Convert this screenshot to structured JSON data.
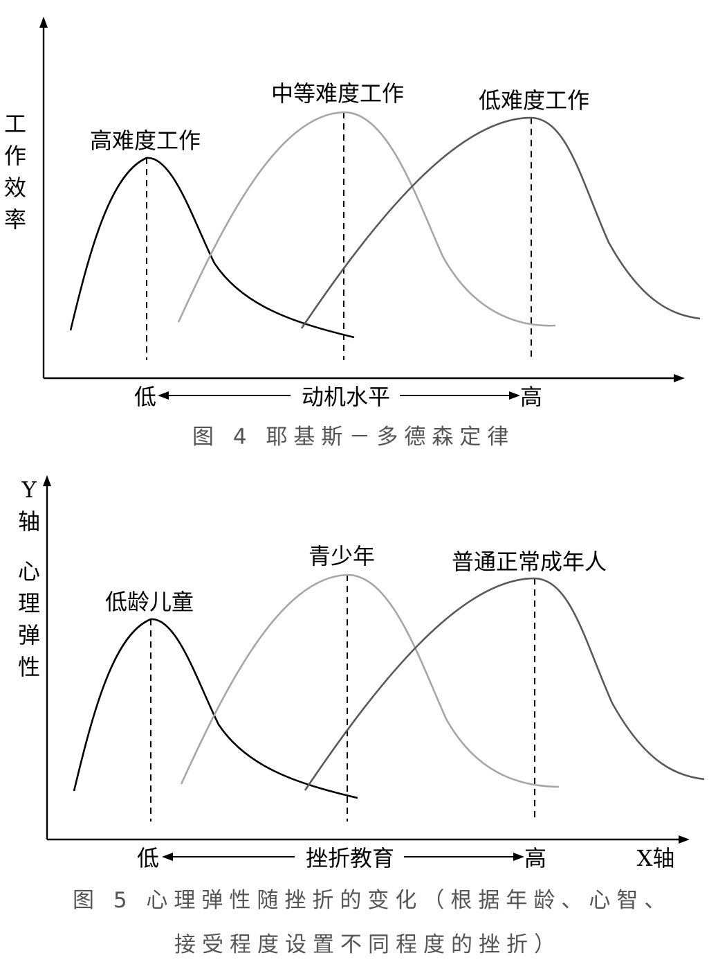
{
  "chart_data": [
    {
      "type": "line",
      "title": "",
      "caption": "图 4  耶基斯－多德森定律",
      "ylabel": "工作效率",
      "xlabel": "动机水平",
      "x_low_label": "低",
      "x_high_label": "高",
      "grid": false,
      "series": [
        {
          "name": "高难度工作",
          "color": "#000000",
          "peak_position": "低"
        },
        {
          "name": "中等难度工作",
          "color": "#a6a6a6",
          "peak_position": "中"
        },
        {
          "name": "低难度工作",
          "color": "#595959",
          "peak_position": "高"
        }
      ]
    },
    {
      "type": "line",
      "title": "",
      "caption_line1": "图 5  心理弹性随挫折的变化（根据年龄、心智、",
      "caption_line2": "接受程度设置不同程度的挫折）",
      "ylabel_top": "Y轴",
      "ylabel": "心理弹性",
      "xlabel": "挫折教育",
      "x_axis_name": "X轴",
      "x_low_label": "低",
      "x_high_label": "高",
      "grid": false,
      "series": [
        {
          "name": "低龄儿童",
          "color": "#000000",
          "peak_position": "低"
        },
        {
          "name": "青少年",
          "color": "#a6a6a6",
          "peak_position": "中"
        },
        {
          "name": "普通正常成年人",
          "color": "#595959",
          "peak_position": "高"
        }
      ]
    }
  ]
}
